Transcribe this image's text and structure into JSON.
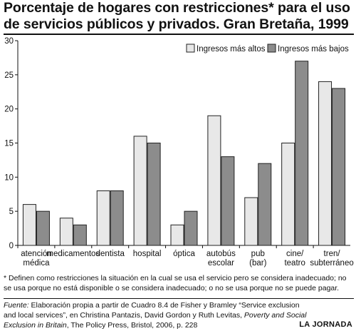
{
  "title": "Porcentaje de hogares con restricciones* para el uso de servicios públicos y privados. Gran Bretaña, 1999",
  "footnote": "* Definen como restricciones la situación en la cual se usa el servicio pero se considera inadecuado; no se usa porque no está disponible o se considera inadecuado; o no se usa porque no se puede pagar.",
  "source": {
    "label": "Fuente:",
    "text_1": " Elaboración propia a partir de Cuadro 8.4 de Fisher y Bramley “Service exclusion and local services”, en Christina Pantazis, David Gordon y Ruth Levitas, ",
    "book_title": "Poverty and Social Exclusion in Britain",
    "text_2": ", The Policy Press, Bristol, 2006, p. 228"
  },
  "brand": "LA JORNADA",
  "colors": {
    "light": "#e8e8e8",
    "dark": "#8c8c8c",
    "stroke": "#222222"
  },
  "chart_data": {
    "type": "bar",
    "categories": [
      [
        "atención",
        "médica"
      ],
      [
        "medicamentos"
      ],
      [
        "dentista"
      ],
      [
        "hospital"
      ],
      [
        "óptica"
      ],
      [
        "autobús",
        "escolar"
      ],
      [
        "pub",
        "(bar)"
      ],
      [
        "cine/",
        "teatro"
      ],
      [
        "tren/",
        "subterráneo"
      ]
    ],
    "series": [
      {
        "name": "Ingresos más altos",
        "values": [
          6,
          4,
          8,
          16,
          3,
          19,
          7,
          15,
          24
        ]
      },
      {
        "name": "Ingresos más bajos",
        "values": [
          5,
          3,
          8,
          15,
          5,
          13,
          12,
          27,
          23
        ]
      }
    ],
    "ylim": [
      0,
      30
    ],
    "yticks": [
      0,
      5,
      10,
      15,
      20,
      25,
      30
    ],
    "legend_position": "top-right",
    "grid": false
  }
}
